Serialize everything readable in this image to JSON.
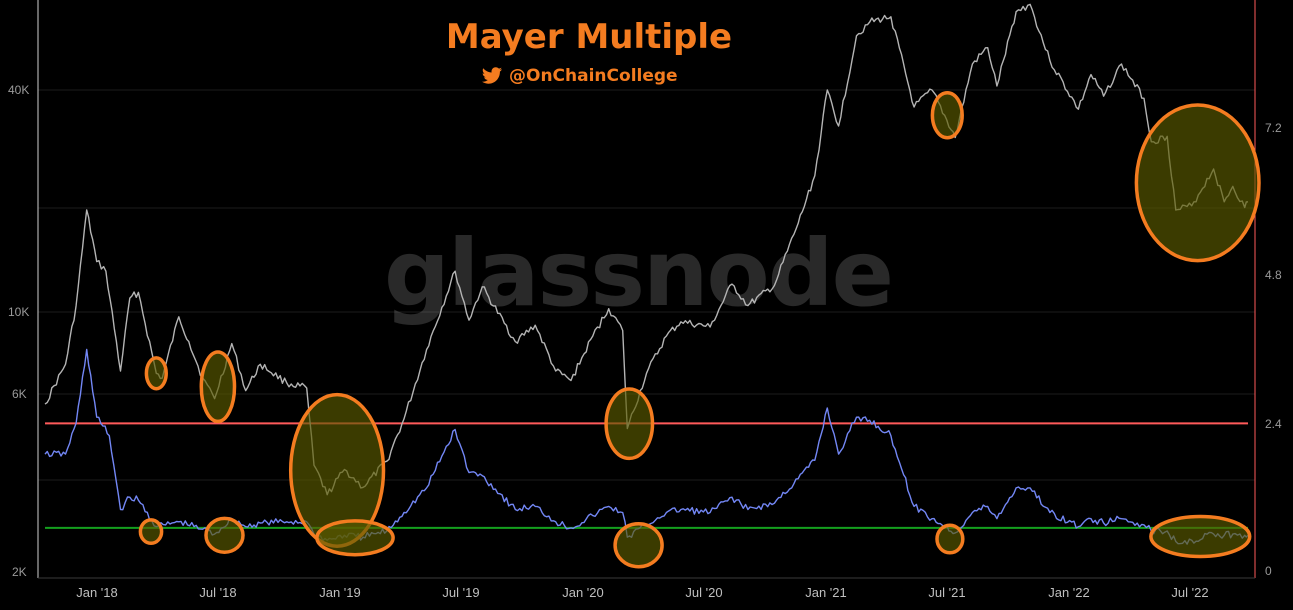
{
  "header": {
    "title": "Mayer Multiple",
    "handle": "@OnChainCollege",
    "watermark": "glassnode"
  },
  "colors": {
    "background": "#000000",
    "price_line": "#b4b4b4",
    "mayer_line": "#7387f5",
    "threshold_high": "#ff5a5a",
    "threshold_low": "#14a01e",
    "highlight_stroke": "#f47c20",
    "highlight_fill": "#5a5a00",
    "title": "#f47c20"
  },
  "icons": {
    "twitter": "twitter-bird-icon"
  },
  "chart_data": {
    "type": "line",
    "title": "Mayer Multiple",
    "x_tick_labels": [
      "Jan '18",
      "Jul '18",
      "Jan '19",
      "Jul '19",
      "Jan '20",
      "Jul '20",
      "Jan '21",
      "Jul '21",
      "Jan '22",
      "Jul '22"
    ],
    "left_axis": {
      "scale": "log",
      "tick_labels": [
        "2K",
        "6K",
        "10K",
        "40K"
      ],
      "ticks": [
        2000,
        6000,
        10000,
        40000
      ],
      "range": [
        2000,
        80000
      ]
    },
    "right_axis": {
      "scale": "linear",
      "tick_labels": [
        "0",
        "2.4",
        "4.8",
        "7.2"
      ],
      "ticks": [
        0,
        2.4,
        4.8,
        7.2
      ],
      "range": [
        0,
        9.6
      ]
    },
    "thresholds": [
      {
        "axis": "right",
        "value": 2.4,
        "color": "#ff5a5a"
      },
      {
        "axis": "right",
        "value": 0.7,
        "color": "#14a01e"
      }
    ],
    "series": [
      {
        "axis": "left",
        "color": "#b4b4b4",
        "points": [
          [
            "2017-10-15",
            5700
          ],
          [
            "2017-11-15",
            7300
          ],
          [
            "2017-12-01",
            10500
          ],
          [
            "2017-12-17",
            19000
          ],
          [
            "2018-01-01",
            13800
          ],
          [
            "2018-01-15",
            13000
          ],
          [
            "2018-02-06",
            7000
          ],
          [
            "2018-02-20",
            11000
          ],
          [
            "2018-03-05",
            11400
          ],
          [
            "2018-04-01",
            6900
          ],
          [
            "2018-04-10",
            6700
          ],
          [
            "2018-05-05",
            9800
          ],
          [
            "2018-05-20",
            8400
          ],
          [
            "2018-06-10",
            6700
          ],
          [
            "2018-06-28",
            5900
          ],
          [
            "2018-07-24",
            8300
          ],
          [
            "2018-08-14",
            6200
          ],
          [
            "2018-09-05",
            7300
          ],
          [
            "2018-10-15",
            6500
          ],
          [
            "2018-11-14",
            6300
          ],
          [
            "2018-11-25",
            3900
          ],
          [
            "2018-12-15",
            3250
          ],
          [
            "2019-01-10",
            3800
          ],
          [
            "2019-02-07",
            3400
          ],
          [
            "2019-03-15",
            4000
          ],
          [
            "2019-04-10",
            5200
          ],
          [
            "2019-05-14",
            8000
          ],
          [
            "2019-06-26",
            13000
          ],
          [
            "2019-07-17",
            9600
          ],
          [
            "2019-08-06",
            11800
          ],
          [
            "2019-09-25",
            8400
          ],
          [
            "2019-10-25",
            9300
          ],
          [
            "2019-11-25",
            7000
          ],
          [
            "2019-12-18",
            6600
          ],
          [
            "2020-01-20",
            8700
          ],
          [
            "2020-02-13",
            10300
          ],
          [
            "2020-03-05",
            9000
          ],
          [
            "2020-03-12",
            4900
          ],
          [
            "2020-04-10",
            6900
          ],
          [
            "2020-05-10",
            8700
          ],
          [
            "2020-06-01",
            9500
          ],
          [
            "2020-07-15",
            9200
          ],
          [
            "2020-08-17",
            12000
          ],
          [
            "2020-09-10",
            10500
          ],
          [
            "2020-10-20",
            11900
          ],
          [
            "2020-11-25",
            17500
          ],
          [
            "2020-12-20",
            23500
          ],
          [
            "2021-01-08",
            40000
          ],
          [
            "2021-01-25",
            32000
          ],
          [
            "2021-02-21",
            56000
          ],
          [
            "2021-03-13",
            61000
          ],
          [
            "2021-04-14",
            63000
          ],
          [
            "2021-05-19",
            36000
          ],
          [
            "2021-06-15",
            40000
          ],
          [
            "2021-07-20",
            29800
          ],
          [
            "2021-08-15",
            47000
          ],
          [
            "2021-09-07",
            52000
          ],
          [
            "2021-09-21",
            41000
          ],
          [
            "2021-10-20",
            65000
          ],
          [
            "2021-11-10",
            68000
          ],
          [
            "2021-12-10",
            48000
          ],
          [
            "2022-01-22",
            35500
          ],
          [
            "2022-02-10",
            44000
          ],
          [
            "2022-03-01",
            38500
          ],
          [
            "2022-03-28",
            47000
          ],
          [
            "2022-05-01",
            38000
          ],
          [
            "2022-05-12",
            29000
          ],
          [
            "2022-06-05",
            30000
          ],
          [
            "2022-06-18",
            19000
          ],
          [
            "2022-07-12",
            19500
          ],
          [
            "2022-08-14",
            24500
          ],
          [
            "2022-08-30",
            20000
          ],
          [
            "2022-09-12",
            22000
          ],
          [
            "2022-09-30",
            19300
          ],
          [
            "2022-10-05",
            20000
          ]
        ]
      },
      {
        "axis": "right",
        "color": "#7387f5",
        "points": [
          [
            "2017-10-15",
            1.9
          ],
          [
            "2017-11-15",
            1.9
          ],
          [
            "2017-12-01",
            2.4
          ],
          [
            "2017-12-17",
            3.6
          ],
          [
            "2018-01-01",
            2.5
          ],
          [
            "2018-01-20",
            2.2
          ],
          [
            "2018-02-06",
            1.0
          ],
          [
            "2018-02-20",
            1.2
          ],
          [
            "2018-03-05",
            1.15
          ],
          [
            "2018-04-01",
            0.72
          ],
          [
            "2018-04-15",
            0.75
          ],
          [
            "2018-05-05",
            0.8
          ],
          [
            "2018-06-10",
            0.68
          ],
          [
            "2018-06-28",
            0.6
          ],
          [
            "2018-07-24",
            0.85
          ],
          [
            "2018-08-14",
            0.72
          ],
          [
            "2018-09-05",
            0.78
          ],
          [
            "2018-10-15",
            0.8
          ],
          [
            "2018-11-14",
            0.8
          ],
          [
            "2018-11-25",
            0.6
          ],
          [
            "2018-12-15",
            0.5
          ],
          [
            "2019-01-10",
            0.58
          ],
          [
            "2019-02-07",
            0.55
          ],
          [
            "2019-03-15",
            0.65
          ],
          [
            "2019-04-10",
            0.95
          ],
          [
            "2019-05-14",
            1.35
          ],
          [
            "2019-06-26",
            2.3
          ],
          [
            "2019-07-17",
            1.6
          ],
          [
            "2019-08-06",
            1.55
          ],
          [
            "2019-09-25",
            1.0
          ],
          [
            "2019-10-25",
            1.05
          ],
          [
            "2019-11-25",
            0.8
          ],
          [
            "2019-12-18",
            0.7
          ],
          [
            "2020-01-20",
            0.9
          ],
          [
            "2020-02-13",
            1.05
          ],
          [
            "2020-03-05",
            0.95
          ],
          [
            "2020-03-12",
            0.55
          ],
          [
            "2020-04-10",
            0.75
          ],
          [
            "2020-05-10",
            0.95
          ],
          [
            "2020-06-01",
            1.0
          ],
          [
            "2020-07-15",
            0.95
          ],
          [
            "2020-08-17",
            1.2
          ],
          [
            "2020-09-10",
            1.0
          ],
          [
            "2020-10-20",
            1.1
          ],
          [
            "2020-11-25",
            1.5
          ],
          [
            "2020-12-20",
            1.8
          ],
          [
            "2021-01-08",
            2.65
          ],
          [
            "2021-01-25",
            1.9
          ],
          [
            "2021-02-21",
            2.5
          ],
          [
            "2021-03-13",
            2.45
          ],
          [
            "2021-04-14",
            2.2
          ],
          [
            "2021-05-19",
            1.05
          ],
          [
            "2021-06-15",
            0.85
          ],
          [
            "2021-07-20",
            0.62
          ],
          [
            "2021-08-15",
            0.95
          ],
          [
            "2021-09-07",
            1.05
          ],
          [
            "2021-09-21",
            0.85
          ],
          [
            "2021-10-20",
            1.35
          ],
          [
            "2021-11-10",
            1.35
          ],
          [
            "2021-12-10",
            0.95
          ],
          [
            "2022-01-22",
            0.72
          ],
          [
            "2022-02-10",
            0.85
          ],
          [
            "2022-03-01",
            0.78
          ],
          [
            "2022-03-28",
            0.85
          ],
          [
            "2022-05-01",
            0.75
          ],
          [
            "2022-05-12",
            0.65
          ],
          [
            "2022-06-05",
            0.65
          ],
          [
            "2022-06-18",
            0.48
          ],
          [
            "2022-07-12",
            0.5
          ],
          [
            "2022-08-14",
            0.6
          ],
          [
            "2022-08-30",
            0.58
          ],
          [
            "2022-09-12",
            0.6
          ],
          [
            "2022-09-30",
            0.58
          ],
          [
            "2022-10-05",
            0.58
          ]
        ]
      }
    ],
    "highlights": [
      {
        "axis": "left",
        "center": [
          "2018-04-01",
          6900
        ],
        "span_days": 30,
        "span_factor": 1.1
      },
      {
        "axis": "left",
        "center": [
          "2018-07-03",
          6350
        ],
        "span_days": 50,
        "span_factor": 1.24
      },
      {
        "axis": "left",
        "center": [
          "2018-12-30",
          3780
        ],
        "span_days": 140,
        "span_factor": 1.6
      },
      {
        "axis": "left",
        "center": [
          "2020-03-15",
          5050
        ],
        "span_days": 70,
        "span_factor": 1.24
      },
      {
        "axis": "left",
        "center": [
          "2021-07-08",
          34200
        ],
        "span_days": 45,
        "span_factor": 1.15
      },
      {
        "axis": "left",
        "center": [
          "2022-07-21",
          22500
        ],
        "span_days": 185,
        "span_factor": 1.62
      },
      {
        "axis": "right",
        "center": [
          "2018-03-24",
          0.64
        ],
        "span_days": 32,
        "span_factor": 0.38
      },
      {
        "axis": "right",
        "center": [
          "2018-07-13",
          0.58
        ],
        "span_days": 56,
        "span_factor": 0.55
      },
      {
        "axis": "right",
        "center": [
          "2019-01-26",
          0.54
        ],
        "span_days": 115,
        "span_factor": 0.55
      },
      {
        "axis": "right",
        "center": [
          "2020-03-29",
          0.42
        ],
        "span_days": 71,
        "span_factor": 0.7
      },
      {
        "axis": "right",
        "center": [
          "2021-07-12",
          0.52
        ],
        "span_days": 39,
        "span_factor": 0.45
      },
      {
        "axis": "right",
        "center": [
          "2022-07-25",
          0.56
        ],
        "span_days": 149,
        "span_factor": 0.65
      }
    ]
  }
}
